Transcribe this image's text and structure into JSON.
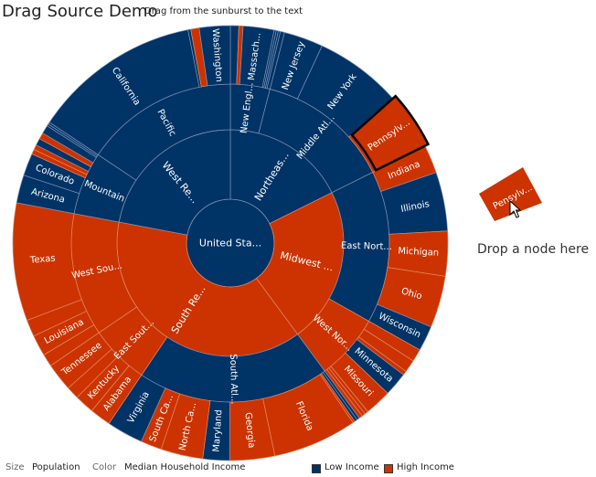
{
  "header": {
    "title": "Drag Source Demo",
    "subtitle": "Drag from the sunburst to the text"
  },
  "drop_target": {
    "label": "Drop a node here",
    "dragged_node_label": "Pensylv..."
  },
  "footer": {
    "size_label": "Size",
    "size_value": "Population",
    "color_label": "Color",
    "color_value": "Median Household Income"
  },
  "colors": {
    "low_income": "#003366",
    "high_income": "#cc3300",
    "selection_border": "#000000"
  },
  "chart_data": {
    "type": "sunburst",
    "title": "Drag Source Demo",
    "size_metric": "Population",
    "color_metric": "Median Household Income",
    "legend": [
      {
        "label": "Low Income",
        "color": "#003366"
      },
      {
        "label": "High Income",
        "color": "#cc3300"
      }
    ],
    "legend_position": "bottom-right",
    "selected_node": "Pennsylvania",
    "root": {
      "label": "United Sta...",
      "income": "low",
      "children": [
        {
          "label": "Northeas...",
          "income": "low",
          "children": [
            {
              "label": "New Engl...",
              "income": "low",
              "children": [
                {
                  "label": "",
                  "income": "low",
                  "value": 0.6
                },
                {
                  "label": "",
                  "income": "high",
                  "value": 0.3
                },
                {
                  "label": "Massach...",
                  "income": "low",
                  "value": 2.2
                },
                {
                  "label": "",
                  "income": "low",
                  "value": 0.15
                },
                {
                  "label": "",
                  "income": "low",
                  "value": 0.15
                },
                {
                  "label": "",
                  "income": "low",
                  "value": 0.15
                },
                {
                  "label": "",
                  "income": "low",
                  "value": 0.3
                }
              ]
            },
            {
              "label": "Middle Atl...",
              "income": "low",
              "children": [
                {
                  "label": "New Jersey",
                  "income": "low",
                  "value": 2.8
                },
                {
                  "label": "New York",
                  "income": "low",
                  "value": 6.2
                },
                {
                  "label": "Pennsylv...",
                  "income": "high",
                  "value": 4.1,
                  "selected": true
                }
              ]
            }
          ]
        },
        {
          "label": "Midwest ...",
          "income": "high",
          "children": [
            {
              "label": "East Nort...",
              "income": "low",
              "children": [
                {
                  "label": "Indiana",
                  "income": "high",
                  "value": 2.0
                },
                {
                  "label": "Illinois",
                  "income": "low",
                  "value": 4.2
                },
                {
                  "label": "Michigan",
                  "income": "high",
                  "value": 3.2
                },
                {
                  "label": "Ohio",
                  "income": "high",
                  "value": 3.7
                },
                {
                  "label": "Wisconsin",
                  "income": "low",
                  "value": 1.8
                }
              ]
            },
            {
              "label": "West Nor...",
              "income": "high",
              "children": [
                {
                  "label": "",
                  "income": "high",
                  "value": 0.9
                },
                {
                  "label": "",
                  "income": "high",
                  "value": 0.9
                },
                {
                  "label": "",
                  "income": "high",
                  "value": 0.3
                },
                {
                  "label": "Minnesota",
                  "income": "low",
                  "value": 1.7
                },
                {
                  "label": "Missouri",
                  "income": "high",
                  "value": 1.9
                },
                {
                  "label": "",
                  "income": "high",
                  "value": 0.25
                },
                {
                  "label": "",
                  "income": "high",
                  "value": 0.25
                },
                {
                  "label": "",
                  "income": "high",
                  "value": 0.25
                }
              ]
            }
          ]
        },
        {
          "label": "South Re...",
          "income": "high",
          "children": [
            {
              "label": "South Atl...",
              "income": "low",
              "children": [
                {
                  "label": "",
                  "income": "low",
                  "value": 0.2
                },
                {
                  "label": "",
                  "income": "low",
                  "value": 0.2
                },
                {
                  "label": "",
                  "income": "high",
                  "value": 0.15
                },
                {
                  "label": "Florida",
                  "income": "high",
                  "value": 6.0
                },
                {
                  "label": "Georgia",
                  "income": "high",
                  "value": 3.2
                },
                {
                  "label": "Maryland",
                  "income": "low",
                  "value": 1.9
                },
                {
                  "label": "North Ca...",
                  "income": "high",
                  "value": 3.0
                },
                {
                  "label": "South Ca...",
                  "income": "high",
                  "value": 1.5
                },
                {
                  "label": "Virginia",
                  "income": "low",
                  "value": 2.6
                }
              ]
            },
            {
              "label": "East Sout...",
              "income": "high",
              "children": [
                {
                  "label": "Alabama",
                  "income": "high",
                  "value": 1.5
                },
                {
                  "label": "Kentucky",
                  "income": "high",
                  "value": 1.4
                },
                {
                  "label": "",
                  "income": "high",
                  "value": 0.9
                },
                {
                  "label": "Tennessee",
                  "income": "high",
                  "value": 2.0
                }
              ]
            },
            {
              "label": "West Sou...",
              "income": "high",
              "children": [
                {
                  "label": "",
                  "income": "high",
                  "value": 0.9
                },
                {
                  "label": "Louisiana",
                  "income": "high",
                  "value": 1.5
                },
                {
                  "label": "",
                  "income": "high",
                  "value": 1.2
                },
                {
                  "label": "Texas",
                  "income": "high",
                  "value": 8.4
                }
              ]
            }
          ]
        },
        {
          "label": "West Re...",
          "income": "low",
          "children": [
            {
              "label": "Mountain",
              "income": "low",
              "children": [
                {
                  "label": "Arizona",
                  "income": "low",
                  "value": 2.0
                },
                {
                  "label": "Colorado",
                  "income": "low",
                  "value": 1.6
                },
                {
                  "label": "",
                  "income": "high",
                  "value": 0.35
                },
                {
                  "label": "",
                  "income": "high",
                  "value": 0.35
                },
                {
                  "label": "",
                  "income": "low",
                  "value": 0.5
                },
                {
                  "label": "",
                  "income": "high",
                  "value": 0.45
                },
                {
                  "label": "",
                  "income": "low",
                  "value": 0.6
                },
                {
                  "label": "",
                  "income": "low",
                  "value": 0.15
                },
                {
                  "label": "",
                  "income": "low",
                  "value": 0.15
                }
              ]
            },
            {
              "label": "Pacific",
              "income": "low",
              "children": [
                {
                  "label": "California",
                  "income": "low",
                  "value": 12.0
                },
                {
                  "label": "",
                  "income": "low",
                  "value": 0.2
                },
                {
                  "label": "",
                  "income": "high",
                  "value": 0.6
                },
                {
                  "label": "Washington",
                  "income": "low",
                  "value": 2.2
                }
              ]
            }
          ]
        }
      ]
    }
  }
}
